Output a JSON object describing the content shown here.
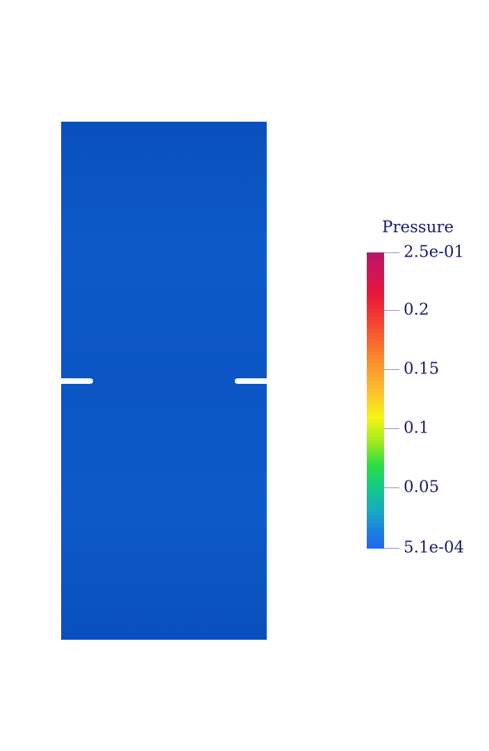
{
  "legend": {
    "title": "Pressure",
    "max_label": "2.5e-01",
    "min_label": "5.1e-04",
    "ticks": [
      {
        "value": 0.2,
        "label": "0.2"
      },
      {
        "value": 0.15,
        "label": "0.15"
      },
      {
        "value": 0.1,
        "label": "0.1"
      },
      {
        "value": 0.05,
        "label": "0.05"
      }
    ],
    "range": [
      0.00051,
      0.25
    ],
    "colormap": [
      "#1f68f0",
      "#1a82e0",
      "#1aa6c8",
      "#12c88d",
      "#2bdd4a",
      "#9dea1e",
      "#f3f614",
      "#fcc72a",
      "#f98a2c",
      "#f4462e",
      "#e8173a",
      "#b8146e"
    ]
  },
  "specimen": {
    "fill_color": "#0b55c4",
    "has_notches": true
  }
}
